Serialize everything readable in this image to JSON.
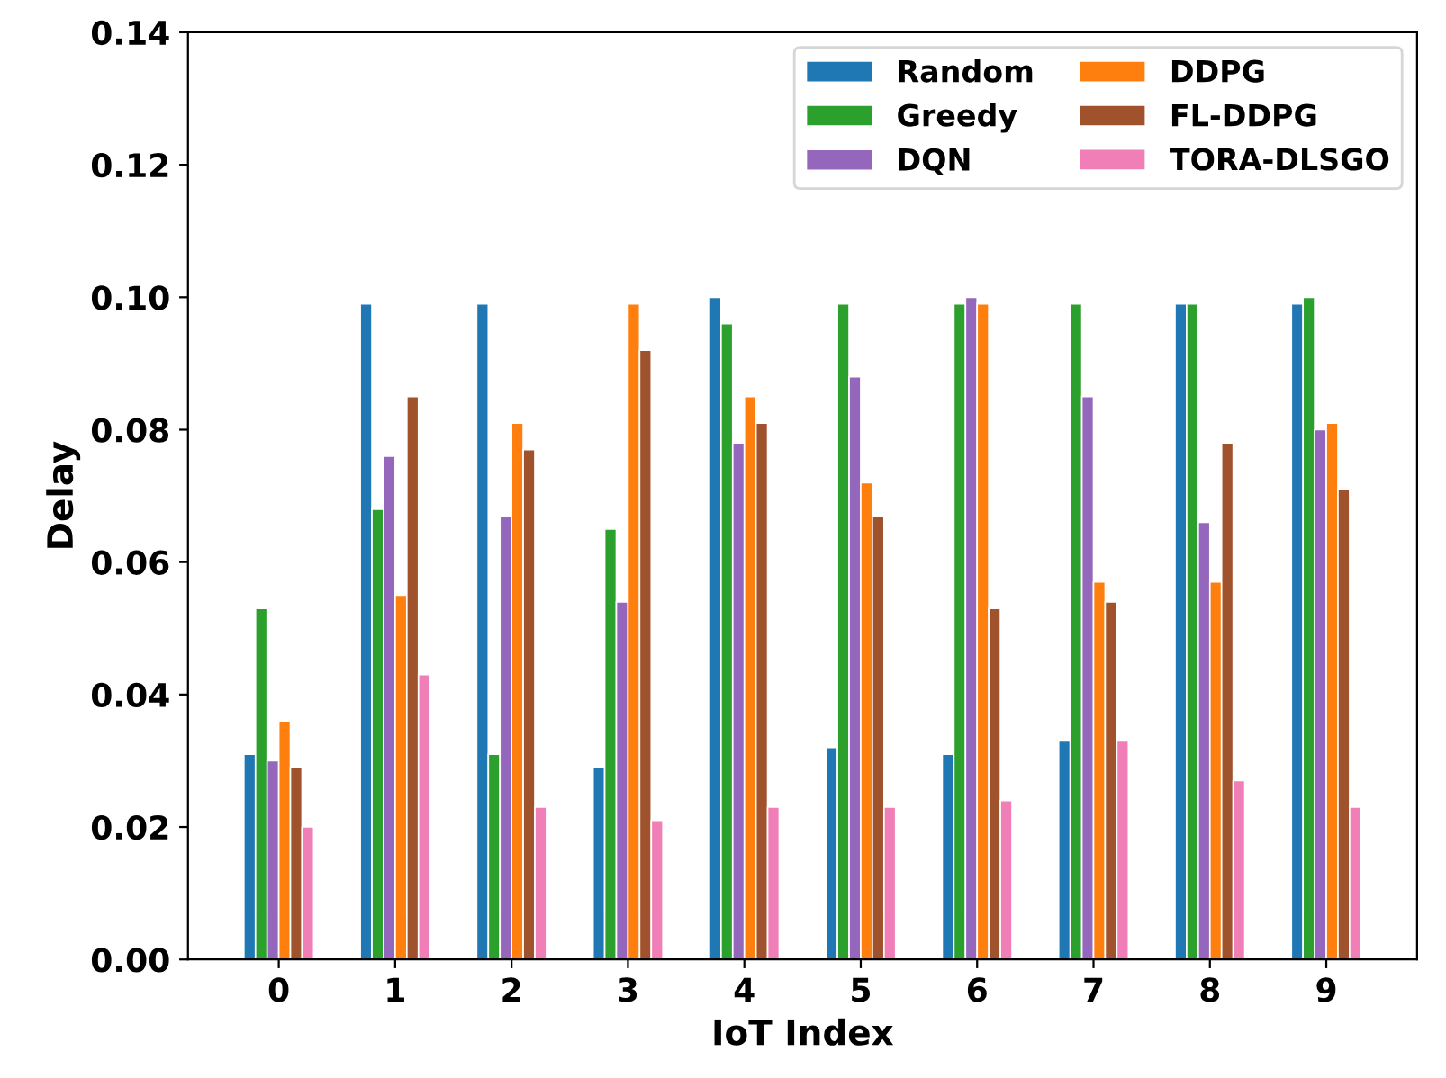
{
  "chart_data": {
    "type": "bar",
    "xlabel": "IoT Index",
    "ylabel": "Delay",
    "categories": [
      "0",
      "1",
      "2",
      "3",
      "4",
      "5",
      "6",
      "7",
      "8",
      "9"
    ],
    "series": [
      {
        "name": "Random",
        "color": "#1f77b4",
        "values": [
          0.031,
          0.099,
          0.099,
          0.029,
          0.1,
          0.032,
          0.031,
          0.033,
          0.099,
          0.099
        ]
      },
      {
        "name": "Greedy",
        "color": "#2ca02c",
        "values": [
          0.053,
          0.068,
          0.031,
          0.065,
          0.096,
          0.099,
          0.099,
          0.099,
          0.099,
          0.1
        ]
      },
      {
        "name": "DQN",
        "color": "#9467bd",
        "values": [
          0.03,
          0.076,
          0.067,
          0.054,
          0.078,
          0.088,
          0.1,
          0.085,
          0.066,
          0.08
        ]
      },
      {
        "name": "DDPG",
        "color": "#ff7f0e",
        "values": [
          0.036,
          0.055,
          0.081,
          0.099,
          0.085,
          0.072,
          0.099,
          0.057,
          0.057,
          0.081
        ]
      },
      {
        "name": "FL-DDPG",
        "color": "#a0522d",
        "values": [
          0.029,
          0.085,
          0.077,
          0.092,
          0.081,
          0.067,
          0.053,
          0.054,
          0.078,
          0.071
        ]
      },
      {
        "name": "TORA-DLSGO",
        "color": "#f07fb8",
        "values": [
          0.02,
          0.043,
          0.023,
          0.021,
          0.023,
          0.023,
          0.024,
          0.033,
          0.027,
          0.023
        ]
      }
    ],
    "ylim": [
      0,
      0.14
    ],
    "yticks": [
      {
        "value": 0,
        "label": "0.00"
      },
      {
        "value": 0.02,
        "label": "0.02"
      },
      {
        "value": 0.04,
        "label": "0.04"
      },
      {
        "value": 0.06,
        "label": "0.06"
      },
      {
        "value": 0.08,
        "label": "0.08"
      },
      {
        "value": 0.1,
        "label": "0.10"
      },
      {
        "value": 0.12,
        "label": "0.12"
      },
      {
        "value": 0.14,
        "label": "0.14"
      }
    ],
    "grid": false,
    "legend": "top right"
  }
}
